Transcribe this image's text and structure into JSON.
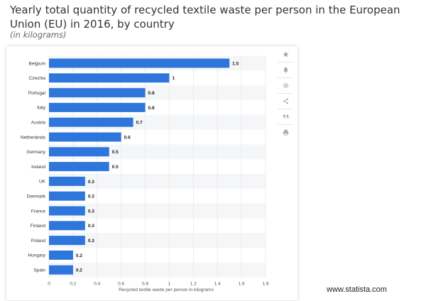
{
  "header": {
    "title": "Yearly total quantity of recycled textile waste per person in the European Union (EU) in 2016, by country",
    "subtitle": "(in kilograms)"
  },
  "toolbar": {
    "icons": [
      "star-icon",
      "bell-icon",
      "gear-icon",
      "share-icon",
      "quote-icon",
      "print-icon"
    ]
  },
  "footer": {
    "source": "www.statista.com"
  },
  "chart_data": {
    "type": "bar",
    "orientation": "horizontal",
    "categories": [
      "Belgium",
      "Czechia",
      "Portugal",
      "Italy",
      "Austria",
      "Netherlands",
      "Germany",
      "Ireland",
      "UK",
      "Denmark",
      "France",
      "Finland",
      "Poland",
      "Hungary",
      "Spain"
    ],
    "values": [
      1.5,
      1,
      0.8,
      0.8,
      0.7,
      0.6,
      0.5,
      0.5,
      0.3,
      0.3,
      0.3,
      0.3,
      0.3,
      0.2,
      0.2
    ],
    "value_labels": [
      "1.5",
      "1",
      "0.8",
      "0.8",
      "0.7",
      "0.6",
      "0.5",
      "0.5",
      "0.3",
      "0.3",
      "0.3",
      "0.3",
      "0.3",
      "0.2",
      "0.2"
    ],
    "xlabel": "Recycled textile waste per person in kilograms",
    "xlim": [
      0,
      1.8
    ],
    "xticks": [
      "0",
      "0.2",
      "0.4",
      "0.6",
      "0.8",
      "1",
      "1.2",
      "1.4",
      "1.6",
      "1.8"
    ],
    "bar_color": "#2f76dc",
    "grid": true
  }
}
